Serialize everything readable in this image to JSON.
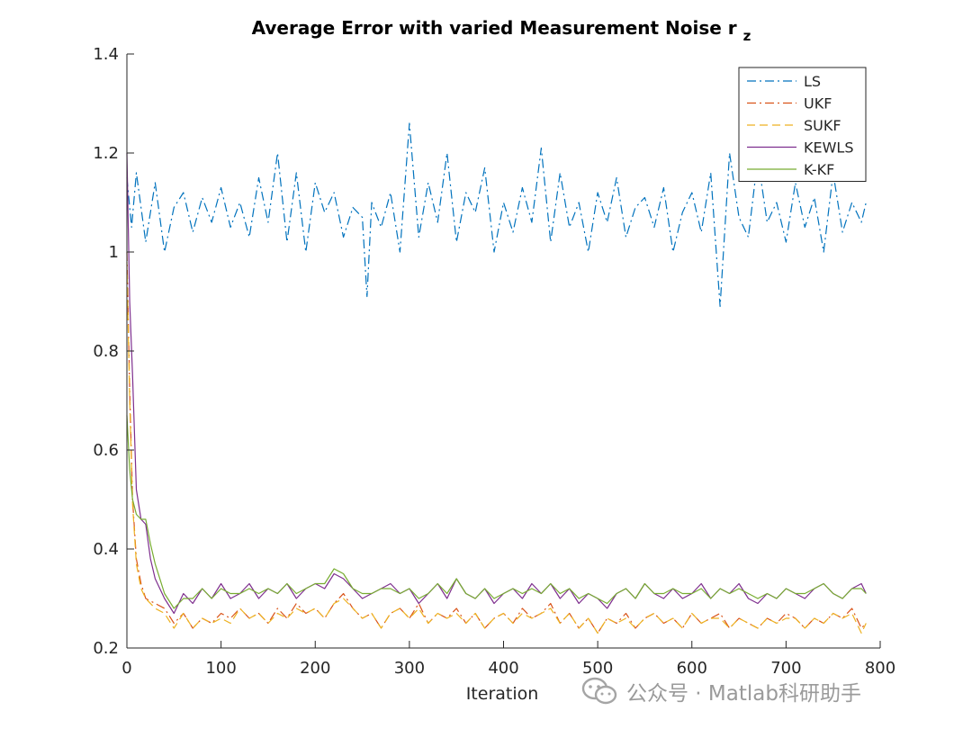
{
  "chart_data": {
    "type": "line",
    "title": "Average Error with varied Measurement Noise r",
    "title_subscript": "z",
    "xlabel": "Iteration",
    "ylabel": "",
    "xlim": [
      0,
      800
    ],
    "ylim": [
      0.2,
      1.4
    ],
    "xticks": [
      0,
      100,
      200,
      300,
      400,
      500,
      600,
      700,
      800
    ],
    "yticks": [
      0.2,
      0.4,
      0.6,
      0.8,
      1,
      1.2,
      1.4
    ],
    "ytick_labels": [
      "0.2",
      "0.4",
      "0.6",
      "0.8",
      "1",
      "1.2",
      "1.4"
    ],
    "grid": false,
    "legend_position": "top-right",
    "series": [
      {
        "name": "LS",
        "color": "#0072BD",
        "dash": "dash-dot",
        "x": [
          0,
          5,
          10,
          20,
          30,
          40,
          50,
          60,
          70,
          80,
          90,
          100,
          110,
          120,
          130,
          140,
          150,
          160,
          170,
          180,
          190,
          200,
          210,
          220,
          230,
          240,
          250,
          255,
          260,
          270,
          280,
          290,
          300,
          310,
          320,
          330,
          340,
          350,
          360,
          370,
          380,
          390,
          400,
          410,
          420,
          430,
          440,
          450,
          460,
          470,
          480,
          490,
          500,
          510,
          520,
          530,
          540,
          550,
          560,
          570,
          580,
          590,
          600,
          610,
          620,
          630,
          640,
          650,
          660,
          670,
          680,
          690,
          700,
          710,
          720,
          730,
          740,
          750,
          760,
          770,
          780,
          785
        ],
        "y": [
          1.15,
          1.05,
          1.16,
          1.02,
          1.14,
          1.0,
          1.09,
          1.12,
          1.04,
          1.11,
          1.06,
          1.13,
          1.05,
          1.1,
          1.03,
          1.15,
          1.06,
          1.2,
          1.02,
          1.16,
          1.0,
          1.14,
          1.08,
          1.12,
          1.03,
          1.09,
          1.07,
          0.91,
          1.1,
          1.05,
          1.12,
          1.0,
          1.26,
          1.03,
          1.14,
          1.06,
          1.2,
          1.02,
          1.12,
          1.08,
          1.17,
          1.0,
          1.1,
          1.04,
          1.13,
          1.06,
          1.21,
          1.02,
          1.16,
          1.05,
          1.1,
          1.0,
          1.12,
          1.06,
          1.15,
          1.03,
          1.09,
          1.11,
          1.05,
          1.13,
          1.0,
          1.08,
          1.12,
          1.04,
          1.16,
          0.89,
          1.2,
          1.07,
          1.03,
          1.19,
          1.06,
          1.1,
          1.02,
          1.14,
          1.05,
          1.11,
          1.0,
          1.16,
          1.04,
          1.1,
          1.06,
          1.1
        ]
      },
      {
        "name": "UKF",
        "color": "#D95319",
        "dash": "dash-dot",
        "x": [
          0,
          3,
          6,
          10,
          15,
          20,
          30,
          40,
          50,
          60,
          70,
          80,
          90,
          100,
          110,
          120,
          130,
          140,
          150,
          160,
          170,
          180,
          190,
          200,
          210,
          220,
          230,
          240,
          250,
          260,
          270,
          280,
          290,
          300,
          310,
          320,
          330,
          340,
          350,
          360,
          370,
          380,
          390,
          400,
          410,
          420,
          430,
          440,
          450,
          460,
          470,
          480,
          490,
          500,
          510,
          520,
          530,
          540,
          550,
          560,
          570,
          580,
          590,
          600,
          610,
          620,
          630,
          640,
          650,
          660,
          670,
          680,
          690,
          700,
          710,
          720,
          730,
          740,
          750,
          760,
          770,
          780,
          785
        ],
        "y": [
          1.0,
          0.72,
          0.5,
          0.38,
          0.33,
          0.3,
          0.29,
          0.28,
          0.25,
          0.27,
          0.24,
          0.26,
          0.25,
          0.27,
          0.26,
          0.28,
          0.26,
          0.27,
          0.25,
          0.28,
          0.26,
          0.29,
          0.27,
          0.28,
          0.26,
          0.29,
          0.31,
          0.28,
          0.26,
          0.27,
          0.24,
          0.27,
          0.28,
          0.26,
          0.29,
          0.25,
          0.27,
          0.26,
          0.28,
          0.25,
          0.27,
          0.24,
          0.26,
          0.27,
          0.25,
          0.28,
          0.26,
          0.27,
          0.29,
          0.25,
          0.27,
          0.24,
          0.26,
          0.23,
          0.26,
          0.25,
          0.27,
          0.24,
          0.26,
          0.27,
          0.25,
          0.26,
          0.24,
          0.27,
          0.25,
          0.26,
          0.27,
          0.24,
          0.26,
          0.25,
          0.24,
          0.26,
          0.25,
          0.27,
          0.26,
          0.24,
          0.26,
          0.25,
          0.27,
          0.26,
          0.28,
          0.24,
          0.25
        ]
      },
      {
        "name": "SUKF",
        "color": "#EDB120",
        "dash": "dashed",
        "x": [
          0,
          3,
          6,
          10,
          15,
          20,
          30,
          40,
          50,
          60,
          70,
          80,
          90,
          100,
          110,
          120,
          130,
          140,
          150,
          160,
          170,
          180,
          190,
          200,
          210,
          220,
          230,
          240,
          250,
          260,
          270,
          280,
          290,
          300,
          310,
          320,
          330,
          340,
          350,
          360,
          370,
          380,
          390,
          400,
          410,
          420,
          430,
          440,
          450,
          460,
          470,
          480,
          490,
          500,
          510,
          520,
          530,
          540,
          550,
          560,
          570,
          580,
          590,
          600,
          610,
          620,
          630,
          640,
          650,
          660,
          670,
          680,
          690,
          700,
          710,
          720,
          730,
          740,
          750,
          760,
          770,
          780,
          785
        ],
        "y": [
          0.98,
          0.7,
          0.49,
          0.37,
          0.32,
          0.3,
          0.28,
          0.27,
          0.24,
          0.27,
          0.24,
          0.26,
          0.25,
          0.26,
          0.25,
          0.28,
          0.26,
          0.27,
          0.25,
          0.27,
          0.26,
          0.28,
          0.27,
          0.28,
          0.26,
          0.29,
          0.3,
          0.28,
          0.26,
          0.27,
          0.24,
          0.27,
          0.28,
          0.26,
          0.28,
          0.25,
          0.27,
          0.26,
          0.27,
          0.25,
          0.27,
          0.24,
          0.26,
          0.27,
          0.25,
          0.27,
          0.26,
          0.27,
          0.28,
          0.25,
          0.27,
          0.24,
          0.26,
          0.23,
          0.26,
          0.25,
          0.26,
          0.24,
          0.26,
          0.27,
          0.25,
          0.26,
          0.24,
          0.27,
          0.25,
          0.26,
          0.26,
          0.24,
          0.26,
          0.25,
          0.24,
          0.26,
          0.25,
          0.26,
          0.26,
          0.24,
          0.26,
          0.25,
          0.27,
          0.26,
          0.27,
          0.23,
          0.25
        ]
      },
      {
        "name": "KEWLS",
        "color": "#7E2F8E",
        "dash": "solid",
        "x": [
          0,
          3,
          6,
          10,
          15,
          20,
          25,
          30,
          40,
          50,
          60,
          70,
          80,
          90,
          100,
          110,
          120,
          130,
          140,
          150,
          160,
          170,
          180,
          190,
          200,
          210,
          220,
          230,
          240,
          250,
          260,
          270,
          280,
          290,
          300,
          310,
          320,
          330,
          340,
          350,
          360,
          370,
          380,
          390,
          400,
          410,
          420,
          430,
          440,
          450,
          460,
          470,
          480,
          490,
          500,
          510,
          520,
          530,
          540,
          550,
          560,
          570,
          580,
          590,
          600,
          610,
          620,
          630,
          640,
          650,
          660,
          670,
          680,
          690,
          700,
          710,
          720,
          730,
          740,
          750,
          760,
          770,
          780,
          785
        ],
        "y": [
          1.2,
          0.9,
          0.75,
          0.52,
          0.46,
          0.45,
          0.38,
          0.34,
          0.3,
          0.27,
          0.31,
          0.29,
          0.32,
          0.3,
          0.33,
          0.3,
          0.31,
          0.33,
          0.3,
          0.32,
          0.31,
          0.33,
          0.3,
          0.32,
          0.33,
          0.32,
          0.35,
          0.34,
          0.32,
          0.3,
          0.31,
          0.32,
          0.33,
          0.31,
          0.32,
          0.29,
          0.31,
          0.33,
          0.3,
          0.34,
          0.31,
          0.3,
          0.32,
          0.29,
          0.31,
          0.32,
          0.3,
          0.33,
          0.31,
          0.33,
          0.3,
          0.32,
          0.29,
          0.31,
          0.3,
          0.28,
          0.31,
          0.32,
          0.3,
          0.33,
          0.31,
          0.3,
          0.32,
          0.3,
          0.31,
          0.33,
          0.3,
          0.32,
          0.31,
          0.33,
          0.3,
          0.29,
          0.31,
          0.3,
          0.32,
          0.31,
          0.3,
          0.32,
          0.33,
          0.31,
          0.3,
          0.32,
          0.33,
          0.31
        ]
      },
      {
        "name": "K-KF",
        "color": "#77AC30",
        "dash": "solid",
        "x": [
          0,
          3,
          6,
          10,
          15,
          20,
          25,
          30,
          40,
          50,
          60,
          70,
          80,
          90,
          100,
          110,
          120,
          130,
          140,
          150,
          160,
          170,
          180,
          190,
          200,
          210,
          220,
          230,
          240,
          250,
          260,
          270,
          280,
          290,
          300,
          310,
          320,
          330,
          340,
          350,
          360,
          370,
          380,
          390,
          400,
          410,
          420,
          430,
          440,
          450,
          460,
          470,
          480,
          490,
          500,
          510,
          520,
          530,
          540,
          550,
          560,
          570,
          580,
          590,
          600,
          610,
          620,
          630,
          640,
          650,
          660,
          670,
          680,
          690,
          700,
          710,
          720,
          730,
          740,
          750,
          760,
          770,
          780,
          785
        ],
        "y": [
          0.67,
          0.56,
          0.5,
          0.47,
          0.46,
          0.46,
          0.41,
          0.37,
          0.31,
          0.28,
          0.3,
          0.3,
          0.32,
          0.3,
          0.32,
          0.31,
          0.31,
          0.32,
          0.31,
          0.32,
          0.31,
          0.33,
          0.31,
          0.32,
          0.33,
          0.33,
          0.36,
          0.35,
          0.32,
          0.31,
          0.31,
          0.32,
          0.32,
          0.31,
          0.32,
          0.3,
          0.31,
          0.33,
          0.31,
          0.34,
          0.31,
          0.3,
          0.32,
          0.3,
          0.31,
          0.32,
          0.31,
          0.32,
          0.31,
          0.33,
          0.31,
          0.32,
          0.3,
          0.31,
          0.3,
          0.29,
          0.31,
          0.32,
          0.3,
          0.33,
          0.31,
          0.31,
          0.32,
          0.31,
          0.31,
          0.32,
          0.3,
          0.32,
          0.31,
          0.32,
          0.31,
          0.3,
          0.31,
          0.3,
          0.32,
          0.31,
          0.31,
          0.32,
          0.33,
          0.31,
          0.3,
          0.32,
          0.32,
          0.31
        ]
      }
    ]
  },
  "watermark": {
    "text": "公众号 · Matlab科研助手",
    "icon": "wechat-icon"
  }
}
